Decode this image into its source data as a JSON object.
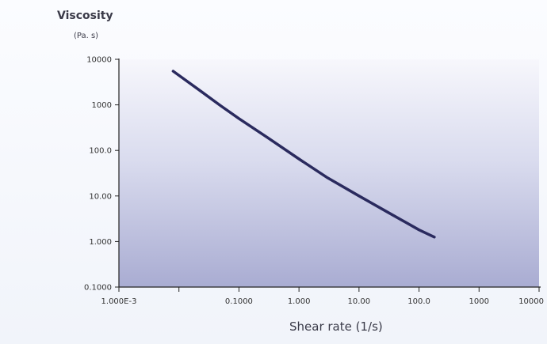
{
  "chart_data": {
    "type": "line",
    "title": "",
    "ylabel": "Viscosity",
    "yunit": "(Pa. s)",
    "xlabel": "Shear rate (1/s)",
    "x_scale": "log",
    "y_scale": "log",
    "xlim": [
      0.001,
      10000
    ],
    "ylim": [
      0.1,
      10000
    ],
    "x_tick_values": [
      0.001,
      0.01,
      0.1,
      1,
      10,
      100,
      1000,
      10000
    ],
    "x_tick_labels": [
      "1.000E-3",
      "",
      "0.1000",
      "1.000",
      "10.00",
      "100.0",
      "1000",
      "10000"
    ],
    "y_tick_values": [
      0.1,
      1,
      10,
      100,
      1000,
      10000
    ],
    "y_tick_labels": [
      "0.1000",
      "1.000",
      "10.00",
      "100.0",
      "1000",
      "10000"
    ],
    "grid": false,
    "line_color": "#2a2a5e",
    "series": [
      {
        "x": [
          0.008,
          0.02,
          0.05,
          0.1,
          0.3,
          1,
          3,
          10,
          30,
          100,
          180
        ],
        "y": [
          5500,
          2300,
          950,
          500,
          190,
          65,
          25,
          10,
          4.4,
          1.8,
          1.25
        ]
      }
    ]
  }
}
